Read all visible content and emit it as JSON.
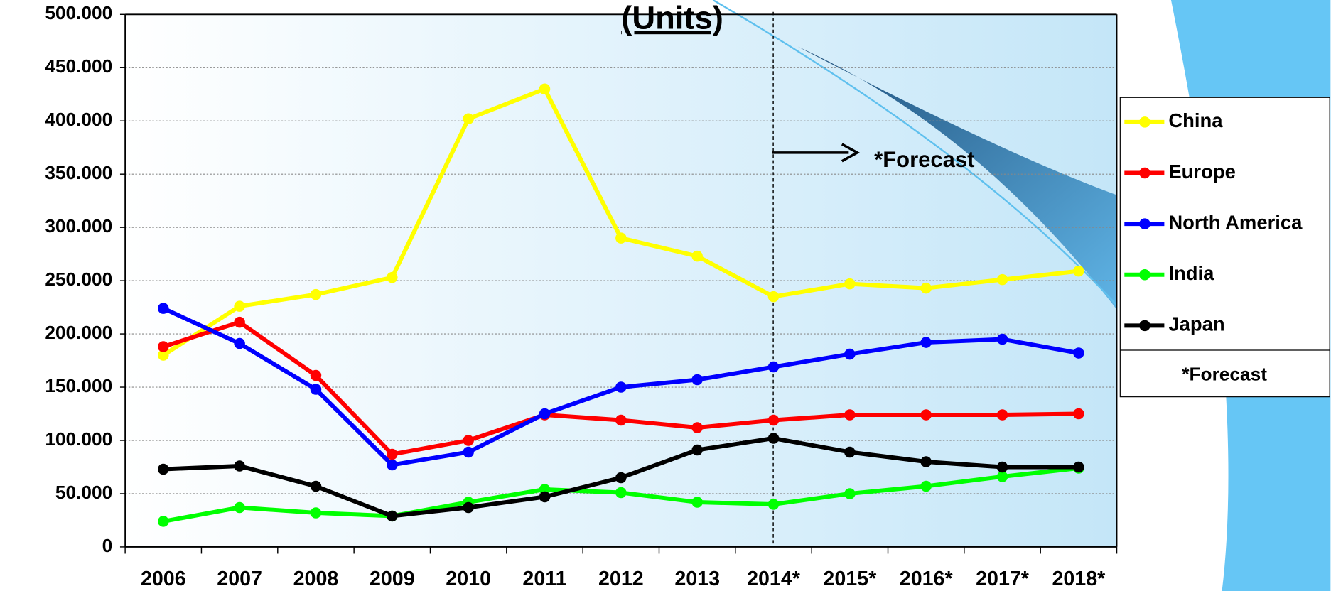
{
  "chart_data": {
    "type": "line",
    "title": "(Units)",
    "annotation": "*Forecast",
    "legend_note": "*Forecast",
    "categories": [
      "2006",
      "2007",
      "2008",
      "2009",
      "2010",
      "2011",
      "2012",
      "2013",
      "2014*",
      "2015*",
      "2016*",
      "2017*",
      "2018*"
    ],
    "series": [
      {
        "name": "China",
        "color": "#ffff00",
        "values": [
          180000,
          226000,
          237000,
          253000,
          402000,
          430000,
          290000,
          273000,
          235000,
          247000,
          243000,
          251000,
          259000
        ]
      },
      {
        "name": "Europe",
        "color": "#ff0000",
        "values": [
          188000,
          211000,
          161000,
          87000,
          100000,
          124000,
          119000,
          112000,
          119000,
          124000,
          124000,
          124000,
          125000
        ]
      },
      {
        "name": "North America",
        "color": "#0000ff",
        "values": [
          224000,
          191000,
          148000,
          77000,
          89000,
          125000,
          150000,
          157000,
          169000,
          181000,
          192000,
          195000,
          182000
        ]
      },
      {
        "name": "India",
        "color": "#00ff00",
        "values": [
          24000,
          37000,
          32000,
          29000,
          42000,
          54000,
          51000,
          42000,
          40000,
          50000,
          57000,
          66000,
          74000
        ]
      },
      {
        "name": "Japan",
        "color": "#000000",
        "values": [
          73000,
          76000,
          57000,
          29000,
          37000,
          47000,
          65000,
          91000,
          102000,
          89000,
          80000,
          75000,
          75000
        ]
      }
    ],
    "ylim": [
      0,
      500000
    ],
    "yticks": [
      0,
      {
        "value": 50000,
        "label": "50.000"
      },
      {
        "value": 100000,
        "label": "100.000"
      },
      {
        "value": 150000,
        "label": "150.000"
      },
      {
        "value": 200000,
        "label": "200.000"
      },
      {
        "value": 250000,
        "label": "250.000"
      },
      {
        "value": 300000,
        "label": "300.000"
      },
      {
        "value": 350000,
        "label": "350.000"
      },
      {
        "value": 400000,
        "label": "400.000"
      },
      {
        "value": 450000,
        "label": "450.000"
      },
      {
        "value": 500000,
        "label": "500.000"
      }
    ],
    "grid": true,
    "legend": "right"
  }
}
